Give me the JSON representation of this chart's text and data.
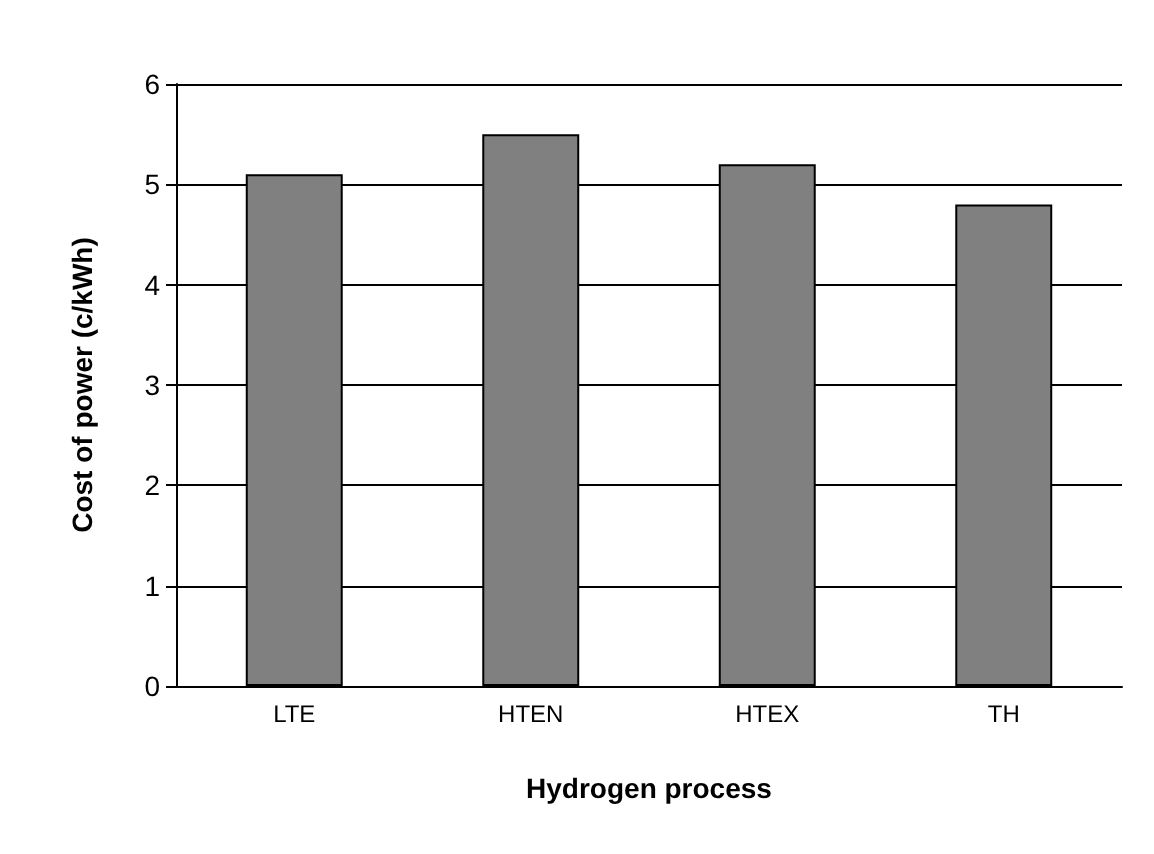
{
  "chart_data": {
    "type": "bar",
    "xlabel": "Hydrogen process",
    "ylabel": "Cost of power (c/kWh)",
    "categories": [
      "LTE",
      "HTEN",
      "HTEX",
      "TH"
    ],
    "values": [
      5.1,
      5.5,
      5.2,
      4.8
    ],
    "color": "#808080",
    "ylim": [
      0,
      6
    ],
    "yticks": [
      0,
      1,
      2,
      3,
      4,
      5,
      6
    ],
    "grid": "y"
  }
}
